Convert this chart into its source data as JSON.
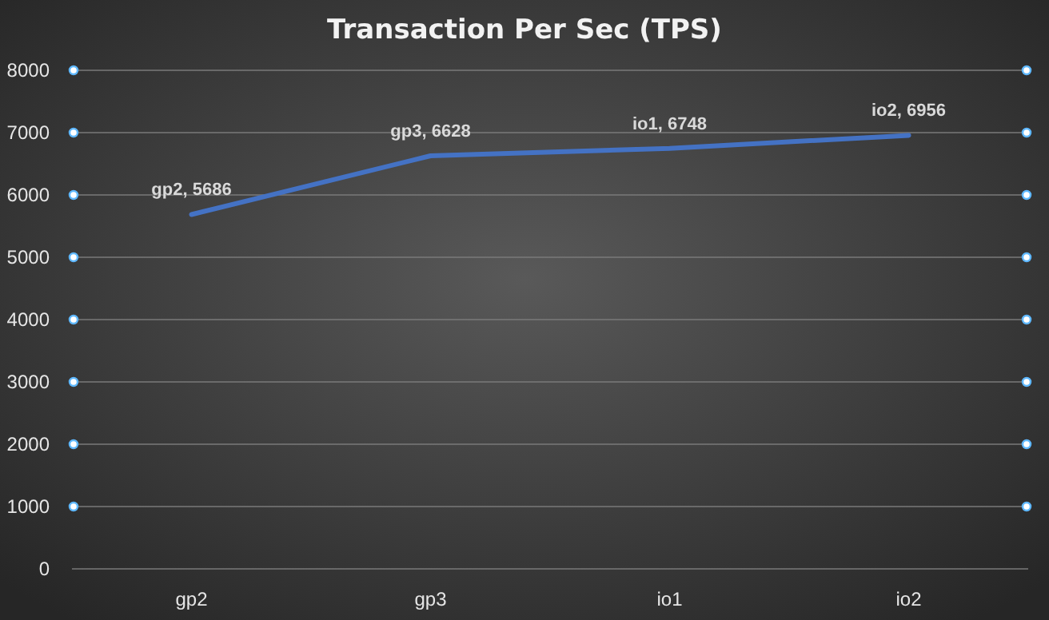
{
  "chart_data": {
    "type": "line",
    "title": "Transaction Per Sec (TPS)",
    "categories": [
      "gp2",
      "gp3",
      "io1",
      "io2"
    ],
    "series": [
      {
        "color": "#4472c4",
        "values": [
          5686,
          6628,
          6748,
          6956
        ],
        "value_labels": [
          "gp2, 5686",
          "gp3, 6628",
          "io1, 6748",
          "io2, 6956"
        ]
      }
    ],
    "ylim": [
      0,
      8000
    ],
    "yticks": [
      0,
      1000,
      2000,
      3000,
      4000,
      5000,
      6000,
      7000,
      8000
    ],
    "grid": "y",
    "marker": "none",
    "line_style": "solid"
  }
}
